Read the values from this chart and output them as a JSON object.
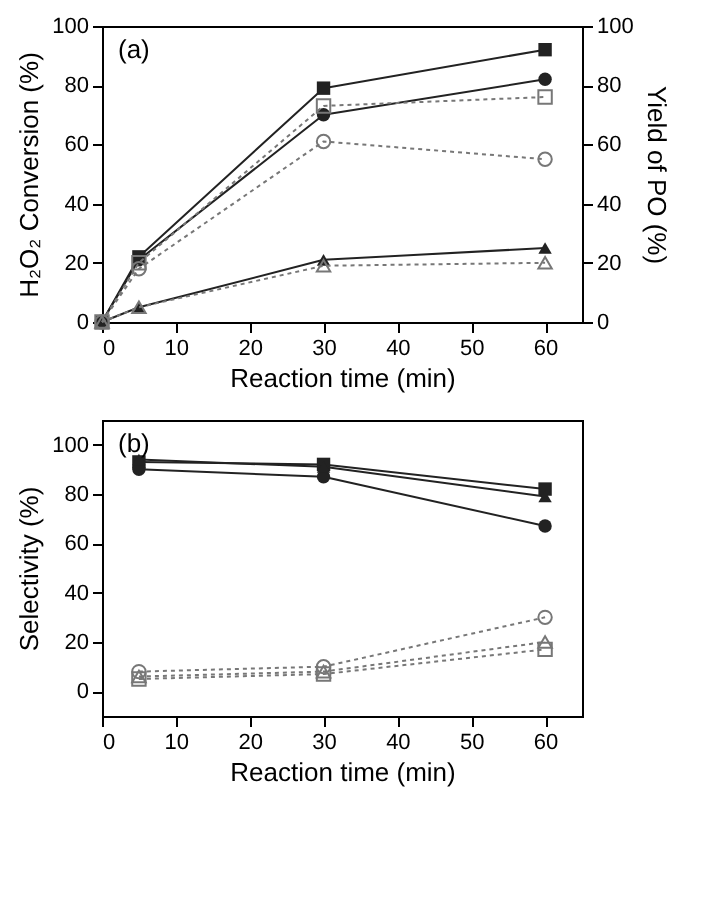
{
  "chart_data": [
    {
      "type": "line",
      "annotations": [
        "(a)"
      ],
      "xlabel": "Reaction time (min)",
      "ylabel": "H₂O₂ Conversion (%)",
      "y2label": "Yield of PO (%)",
      "xlim": [
        0,
        65
      ],
      "xticks": [
        0,
        10,
        20,
        30,
        40,
        50,
        60
      ],
      "ylim": [
        0,
        100
      ],
      "yticks": [
        0,
        20,
        40,
        60,
        80,
        100
      ],
      "y2lim": [
        0,
        100
      ],
      "y2ticks": [
        0,
        20,
        40,
        60,
        80,
        100
      ],
      "grid": false,
      "series": [
        {
          "x": [
            0,
            5,
            30,
            60
          ],
          "values": [
            0,
            22,
            79,
            92
          ],
          "color": "#222222",
          "marker": "square",
          "line_style": "solid"
        },
        {
          "x": [
            0,
            5,
            30,
            60
          ],
          "values": [
            0,
            21,
            70,
            82
          ],
          "color": "#222222",
          "marker": "circle",
          "line_style": "solid"
        },
        {
          "x": [
            0,
            5,
            30,
            60
          ],
          "values": [
            0,
            5,
            21,
            25
          ],
          "color": "#222222",
          "marker": "triangle",
          "line_style": "solid"
        },
        {
          "x": [
            0,
            5,
            30,
            60
          ],
          "values": [
            0,
            20,
            73,
            76
          ],
          "color": "#777777",
          "marker": "square",
          "line_style": "dotted",
          "axis": "y2"
        },
        {
          "x": [
            0,
            5,
            30,
            60
          ],
          "values": [
            0,
            18,
            61,
            55
          ],
          "color": "#777777",
          "marker": "circle",
          "line_style": "dotted",
          "axis": "y2"
        },
        {
          "x": [
            0,
            5,
            30,
            60
          ],
          "values": [
            0,
            5,
            19,
            20
          ],
          "color": "#777777",
          "marker": "triangle",
          "line_style": "dotted",
          "axis": "y2"
        }
      ]
    },
    {
      "type": "line",
      "annotations": [
        "(b)"
      ],
      "xlabel": "Reaction time (min)",
      "ylabel": "Selectivity (%)",
      "xlim": [
        0,
        65
      ],
      "xticks": [
        0,
        10,
        20,
        30,
        40,
        50,
        60
      ],
      "ylim": [
        -10,
        110
      ],
      "yticks": [
        0,
        20,
        40,
        60,
        80,
        100
      ],
      "grid": false,
      "series": [
        {
          "x": [
            5,
            30,
            60
          ],
          "values": [
            93,
            92,
            82
          ],
          "color": "#222222",
          "marker": "square",
          "line_style": "solid"
        },
        {
          "x": [
            5,
            30,
            60
          ],
          "values": [
            90,
            87,
            67
          ],
          "color": "#222222",
          "marker": "circle",
          "line_style": "solid"
        },
        {
          "x": [
            5,
            30,
            60
          ],
          "values": [
            94,
            91,
            79
          ],
          "color": "#222222",
          "marker": "triangle",
          "line_style": "solid"
        },
        {
          "x": [
            5,
            30,
            60
          ],
          "values": [
            5,
            7,
            17
          ],
          "color": "#777777",
          "marker": "square",
          "line_style": "dotted"
        },
        {
          "x": [
            5,
            30,
            60
          ],
          "values": [
            8,
            10,
            30
          ],
          "color": "#777777",
          "marker": "circle",
          "line_style": "dotted"
        },
        {
          "x": [
            5,
            30,
            60
          ],
          "values": [
            6,
            8,
            20
          ],
          "color": "#777777",
          "marker": "triangle",
          "line_style": "dotted"
        }
      ]
    }
  ]
}
